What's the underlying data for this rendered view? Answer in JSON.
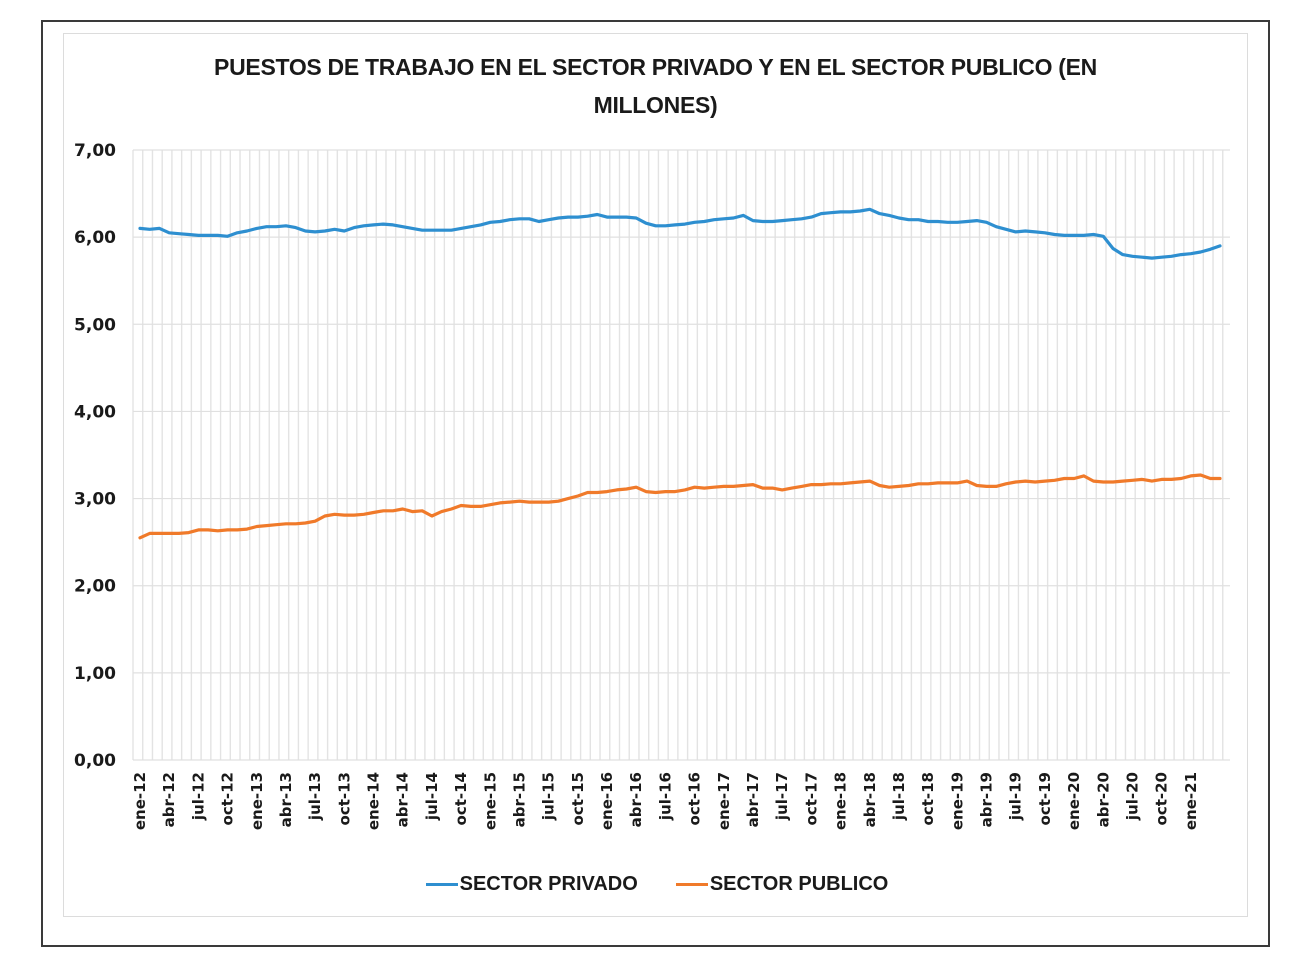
{
  "chart_data": {
    "type": "line",
    "title": "PUESTOS DE TRABAJO  EN EL SECTOR PRIVADO Y EN EL SECTOR PUBLICO (EN MILLONES)",
    "title_lines": [
      "PUESTOS DE TRABAJO  EN EL SECTOR PRIVADO Y EN EL SECTOR PUBLICO (EN",
      "MILLONES)"
    ],
    "xlabel": "",
    "ylabel": "",
    "ylim": [
      0,
      7
    ],
    "yticks": [
      "0,00",
      "1,00",
      "2,00",
      "3,00",
      "4,00",
      "5,00",
      "6,00",
      "7,00"
    ],
    "x_start": "ene-12",
    "x_end": "abr-21",
    "x_frequency": "monthly",
    "x_tick_labels": [
      "ene-12",
      "abr-12",
      "jul-12",
      "oct-12",
      "ene-13",
      "abr-13",
      "jul-13",
      "oct-13",
      "ene-14",
      "abr-14",
      "jul-14",
      "oct-14",
      "ene-15",
      "abr-15",
      "jul-15",
      "oct-15",
      "ene-16",
      "abr-16",
      "jul-16",
      "oct-16",
      "ene-17",
      "abr-17",
      "jul-17",
      "oct-17",
      "ene-18",
      "abr-18",
      "jul-18",
      "oct-18",
      "ene-19",
      "abr-19",
      "jul-19",
      "oct-19",
      "ene-20",
      "abr-20",
      "jul-20",
      "oct-20",
      "ene-21"
    ],
    "grid": {
      "horizontal": true,
      "vertical": true
    },
    "legend_position": "bottom",
    "series": [
      {
        "name": "SECTOR PRIVADO",
        "color": "#2e8fd0",
        "values": [
          6.1,
          6.09,
          6.1,
          6.05,
          6.04,
          6.03,
          6.02,
          6.02,
          6.02,
          6.01,
          6.05,
          6.07,
          6.1,
          6.12,
          6.12,
          6.13,
          6.11,
          6.07,
          6.06,
          6.07,
          6.09,
          6.07,
          6.11,
          6.13,
          6.14,
          6.15,
          6.14,
          6.12,
          6.1,
          6.08,
          6.08,
          6.08,
          6.08,
          6.1,
          6.12,
          6.14,
          6.17,
          6.18,
          6.2,
          6.21,
          6.21,
          6.18,
          6.2,
          6.22,
          6.23,
          6.23,
          6.24,
          6.26,
          6.23,
          6.23,
          6.23,
          6.22,
          6.16,
          6.13,
          6.13,
          6.14,
          6.15,
          6.17,
          6.18,
          6.2,
          6.21,
          6.22,
          6.25,
          6.19,
          6.18,
          6.18,
          6.19,
          6.2,
          6.21,
          6.23,
          6.27,
          6.28,
          6.29,
          6.29,
          6.3,
          6.32,
          6.27,
          6.25,
          6.22,
          6.2,
          6.2,
          6.18,
          6.18,
          6.17,
          6.17,
          6.18,
          6.19,
          6.17,
          6.12,
          6.09,
          6.06,
          6.07,
          6.06,
          6.05,
          6.03,
          6.02,
          6.02,
          6.02,
          6.03,
          6.01,
          5.87,
          5.8,
          5.78,
          5.77,
          5.76,
          5.77,
          5.78,
          5.8,
          5.81,
          5.83,
          5.86,
          5.9
        ]
      },
      {
        "name": "SECTOR PUBLICO",
        "color": "#f07a2a",
        "values": [
          2.55,
          2.6,
          2.6,
          2.6,
          2.6,
          2.61,
          2.64,
          2.64,
          2.63,
          2.64,
          2.64,
          2.65,
          2.68,
          2.69,
          2.7,
          2.71,
          2.71,
          2.72,
          2.74,
          2.8,
          2.82,
          2.81,
          2.81,
          2.82,
          2.84,
          2.86,
          2.86,
          2.88,
          2.85,
          2.86,
          2.8,
          2.85,
          2.88,
          2.92,
          2.91,
          2.91,
          2.93,
          2.95,
          2.96,
          2.97,
          2.96,
          2.96,
          2.96,
          2.97,
          3.0,
          3.03,
          3.07,
          3.07,
          3.08,
          3.1,
          3.11,
          3.13,
          3.08,
          3.07,
          3.08,
          3.08,
          3.1,
          3.13,
          3.12,
          3.13,
          3.14,
          3.14,
          3.15,
          3.16,
          3.12,
          3.12,
          3.1,
          3.12,
          3.14,
          3.16,
          3.16,
          3.17,
          3.17,
          3.18,
          3.19,
          3.2,
          3.15,
          3.13,
          3.14,
          3.15,
          3.17,
          3.17,
          3.18,
          3.18,
          3.18,
          3.2,
          3.15,
          3.14,
          3.14,
          3.17,
          3.19,
          3.2,
          3.19,
          3.2,
          3.21,
          3.23,
          3.23,
          3.26,
          3.2,
          3.19,
          3.19,
          3.2,
          3.21,
          3.22,
          3.2,
          3.22,
          3.22,
          3.23,
          3.26,
          3.27,
          3.23,
          3.23
        ]
      }
    ]
  }
}
